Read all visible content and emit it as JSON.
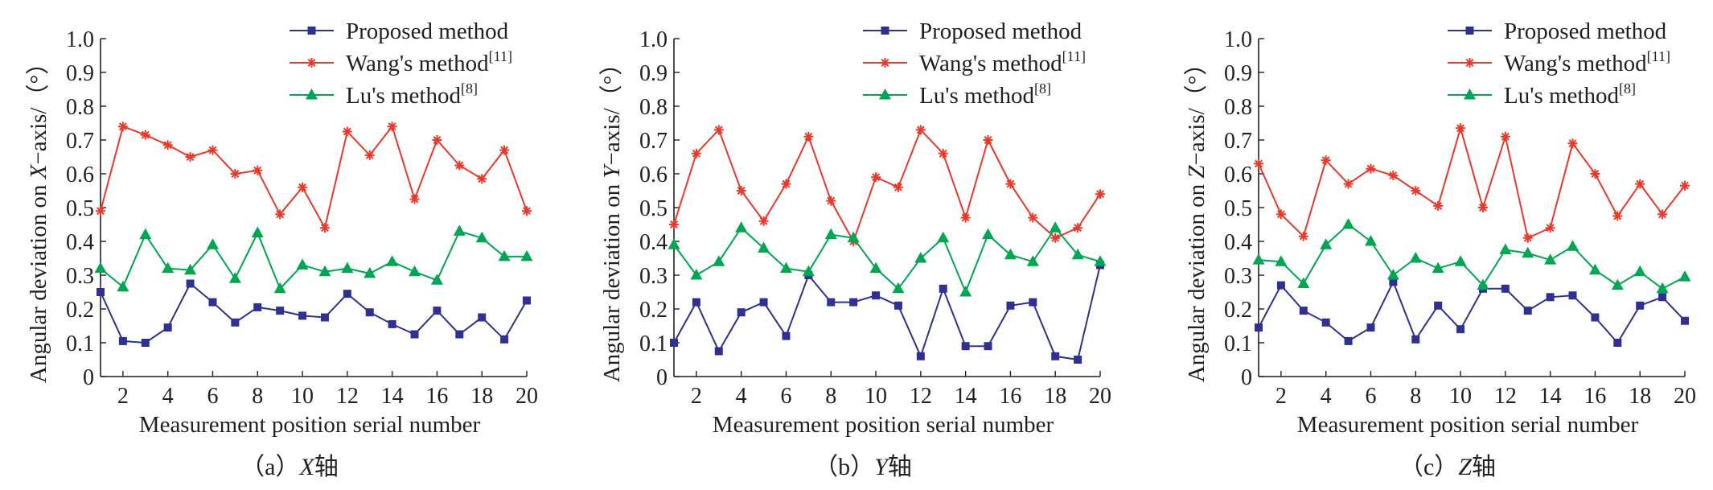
{
  "chart_data": [
    {
      "type": "line",
      "caption": {
        "pre": "（a）",
        "axis": "X",
        "post": "轴"
      },
      "xlabel": "Measurement position serial number",
      "ylabel": {
        "pre": "Angular deviation on ",
        "axis": "X",
        "post": "−axis/（°）"
      },
      "xlim": [
        1,
        20
      ],
      "ylim": [
        0,
        1.0
      ],
      "x_ticks": [
        2,
        4,
        6,
        8,
        10,
        12,
        14,
        16,
        18,
        20
      ],
      "y_ticks": [
        "0",
        "0.1",
        "0.2",
        "0.3",
        "0.4",
        "0.5",
        "0.6",
        "0.7",
        "0.8",
        "0.9",
        "1.0"
      ],
      "legend_position": "top-right",
      "x": [
        1,
        2,
        3,
        4,
        5,
        6,
        7,
        8,
        9,
        10,
        11,
        12,
        13,
        14,
        15,
        16,
        17,
        18,
        19,
        20
      ],
      "series": [
        {
          "name": "Proposed method",
          "marker": "square",
          "color": "#2e3192",
          "values": [
            0.25,
            0.105,
            0.1,
            0.145,
            0.275,
            0.22,
            0.16,
            0.205,
            0.195,
            0.18,
            0.175,
            0.245,
            0.19,
            0.155,
            0.125,
            0.195,
            0.125,
            0.175,
            0.11,
            0.225
          ]
        },
        {
          "name": "Wang's method",
          "ref": "[11]",
          "marker": "star",
          "color": "#e8392b",
          "values": [
            0.49,
            0.74,
            0.715,
            0.685,
            0.65,
            0.67,
            0.6,
            0.61,
            0.48,
            0.56,
            0.44,
            0.725,
            0.655,
            0.74,
            0.525,
            0.7,
            0.625,
            0.585,
            0.67,
            0.49
          ]
        },
        {
          "name": "Lu's method",
          "ref": "[8]",
          "marker": "triangle",
          "color": "#00a651",
          "values": [
            0.32,
            0.265,
            0.42,
            0.32,
            0.315,
            0.39,
            0.29,
            0.425,
            0.26,
            0.33,
            0.31,
            0.32,
            0.305,
            0.34,
            0.31,
            0.285,
            0.43,
            0.41,
            0.355,
            0.355
          ]
        }
      ]
    },
    {
      "type": "line",
      "caption": {
        "pre": "（b）",
        "axis": "Y",
        "post": "轴"
      },
      "xlabel": "Measurement position serial number",
      "ylabel": {
        "pre": "Angular deviation on ",
        "axis": "Y",
        "post": "−axis/（°）"
      },
      "xlim": [
        1,
        20
      ],
      "ylim": [
        0,
        1.0
      ],
      "x_ticks": [
        2,
        4,
        6,
        8,
        10,
        12,
        14,
        16,
        18,
        20
      ],
      "y_ticks": [
        "0",
        "0.1",
        "0.2",
        "0.3",
        "0.4",
        "0.5",
        "0.6",
        "0.7",
        "0.8",
        "0.9",
        "1.0"
      ],
      "legend_position": "top-right",
      "x": [
        1,
        2,
        3,
        4,
        5,
        6,
        7,
        8,
        9,
        10,
        11,
        12,
        13,
        14,
        15,
        16,
        17,
        18,
        19,
        20
      ],
      "series": [
        {
          "name": "Proposed method",
          "marker": "square",
          "color": "#2e3192",
          "values": [
            0.1,
            0.22,
            0.075,
            0.19,
            0.22,
            0.12,
            0.3,
            0.22,
            0.22,
            0.24,
            0.21,
            0.06,
            0.26,
            0.09,
            0.09,
            0.21,
            0.22,
            0.06,
            0.05,
            0.33
          ]
        },
        {
          "name": "Wang's method",
          "ref": "[11]",
          "marker": "star",
          "color": "#e8392b",
          "values": [
            0.45,
            0.66,
            0.73,
            0.55,
            0.46,
            0.57,
            0.71,
            0.52,
            0.4,
            0.59,
            0.56,
            0.73,
            0.66,
            0.47,
            0.7,
            0.57,
            0.47,
            0.41,
            0.44,
            0.54
          ]
        },
        {
          "name": "Lu's method",
          "ref": "[8]",
          "marker": "triangle",
          "color": "#00a651",
          "values": [
            0.39,
            0.3,
            0.34,
            0.44,
            0.38,
            0.32,
            0.31,
            0.42,
            0.41,
            0.32,
            0.26,
            0.35,
            0.41,
            0.25,
            0.42,
            0.36,
            0.34,
            0.44,
            0.36,
            0.34
          ]
        }
      ]
    },
    {
      "type": "line",
      "caption": {
        "pre": "（c）",
        "axis": "Z",
        "post": "轴"
      },
      "xlabel": "Measurement position serial number",
      "ylabel": {
        "pre": "Angular deviation on ",
        "axis": "Z",
        "post": "−axis/（°）"
      },
      "xlim": [
        1,
        20
      ],
      "ylim": [
        0,
        1.0
      ],
      "x_ticks": [
        2,
        4,
        6,
        8,
        10,
        12,
        14,
        16,
        18,
        20
      ],
      "y_ticks": [
        "0",
        "0.1",
        "0.2",
        "0.3",
        "0.4",
        "0.5",
        "0.6",
        "0.7",
        "0.8",
        "0.9",
        "1.0"
      ],
      "legend_position": "top-right",
      "x": [
        1,
        2,
        3,
        4,
        5,
        6,
        7,
        8,
        9,
        10,
        11,
        12,
        13,
        14,
        15,
        16,
        17,
        18,
        19,
        20
      ],
      "series": [
        {
          "name": "Proposed method",
          "marker": "square",
          "color": "#2e3192",
          "values": [
            0.145,
            0.27,
            0.195,
            0.16,
            0.105,
            0.145,
            0.28,
            0.11,
            0.21,
            0.14,
            0.26,
            0.26,
            0.195,
            0.235,
            0.24,
            0.175,
            0.1,
            0.21,
            0.235,
            0.165
          ]
        },
        {
          "name": "Wang's method",
          "ref": "[11]",
          "marker": "star",
          "color": "#e8392b",
          "values": [
            0.63,
            0.48,
            0.415,
            0.64,
            0.57,
            0.615,
            0.595,
            0.55,
            0.505,
            0.735,
            0.5,
            0.71,
            0.41,
            0.44,
            0.69,
            0.6,
            0.475,
            0.57,
            0.48,
            0.565
          ]
        },
        {
          "name": "Lu's method",
          "ref": "[8]",
          "marker": "triangle",
          "color": "#00a651",
          "values": [
            0.345,
            0.34,
            0.275,
            0.39,
            0.45,
            0.4,
            0.3,
            0.35,
            0.32,
            0.34,
            0.27,
            0.375,
            0.365,
            0.345,
            0.385,
            0.315,
            0.27,
            0.31,
            0.26,
            0.295
          ]
        }
      ]
    }
  ]
}
